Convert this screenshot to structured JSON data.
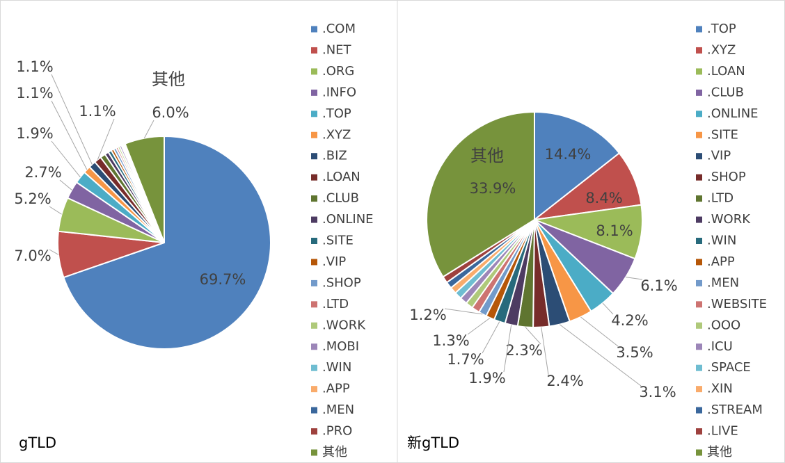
{
  "chart_data": [
    {
      "type": "pie",
      "title": "gTLD",
      "categories": [
        ".COM",
        ".NET",
        ".ORG",
        ".INFO",
        ".TOP",
        ".XYZ",
        ".BIZ",
        ".LOAN",
        ".CLUB",
        ".ONLINE",
        ".SITE",
        ".VIP",
        ".SHOP",
        ".LTD",
        ".WORK",
        ".MOBI",
        ".WIN",
        ".APP",
        ".MEN",
        ".PRO",
        "其他"
      ],
      "values": [
        69.7,
        7.0,
        5.2,
        2.7,
        1.9,
        1.1,
        1.1,
        1.1,
        0.8,
        0.6,
        0.5,
        0.4,
        0.4,
        0.3,
        0.3,
        0.3,
        0.2,
        0.2,
        0.1,
        0.1,
        6.0
      ],
      "value_labels": [
        "69.7%",
        "7.0%",
        "5.2%",
        "2.7%",
        "1.9%",
        "1.1%",
        "1.1%",
        "1.1%",
        null,
        null,
        null,
        null,
        null,
        null,
        null,
        null,
        null,
        null,
        null,
        null,
        "6.0%"
      ],
      "colors": [
        "#4f81bd",
        "#c0504d",
        "#9bbb59",
        "#8064a2",
        "#4bacc6",
        "#f79646",
        "#2c4d75",
        "#772c2a",
        "#5f7530",
        "#4d3b62",
        "#276a7c",
        "#b65708",
        "#729aca",
        "#cd7371",
        "#afc97a",
        "#9c86b8",
        "#6fbdd1",
        "#f9ab6b",
        "#3a679c",
        "#9e413e",
        "#77933c"
      ]
    },
    {
      "type": "pie",
      "title": "新gTLD",
      "categories": [
        ".TOP",
        ".XYZ",
        ".LOAN",
        ".CLUB",
        ".ONLINE",
        ".SITE",
        ".VIP",
        ".SHOP",
        ".LTD",
        ".WORK",
        ".WIN",
        ".APP",
        ".MEN",
        ".WEBSITE",
        ".OOO",
        ".ICU",
        ".SPACE",
        ".XIN",
        ".STREAM",
        ".LIVE",
        "其他"
      ],
      "values": [
        14.4,
        8.4,
        8.1,
        6.1,
        4.2,
        3.5,
        3.1,
        2.4,
        2.3,
        1.9,
        1.7,
        1.3,
        1.2,
        1.2,
        1.1,
        1.1,
        1.1,
        1.0,
        1.0,
        1.0,
        33.9
      ],
      "value_labels": [
        "14.4%",
        "8.4%",
        "8.1%",
        "6.1%",
        "4.2%",
        "3.5%",
        "3.1%",
        "2.4%",
        "2.3%",
        "1.9%",
        "1.7%",
        "1.3%",
        "1.2%",
        null,
        null,
        null,
        null,
        null,
        null,
        null,
        "33.9%"
      ],
      "colors": [
        "#4f81bd",
        "#c0504d",
        "#9bbb59",
        "#8064a2",
        "#4bacc6",
        "#f79646",
        "#2c4d75",
        "#772c2a",
        "#5f7530",
        "#4d3b62",
        "#276a7c",
        "#b65708",
        "#729aca",
        "#cd7371",
        "#afc97a",
        "#9c86b8",
        "#6fbdd1",
        "#f9ab6b",
        "#3a679c",
        "#9e413e",
        "#77933c"
      ]
    }
  ]
}
